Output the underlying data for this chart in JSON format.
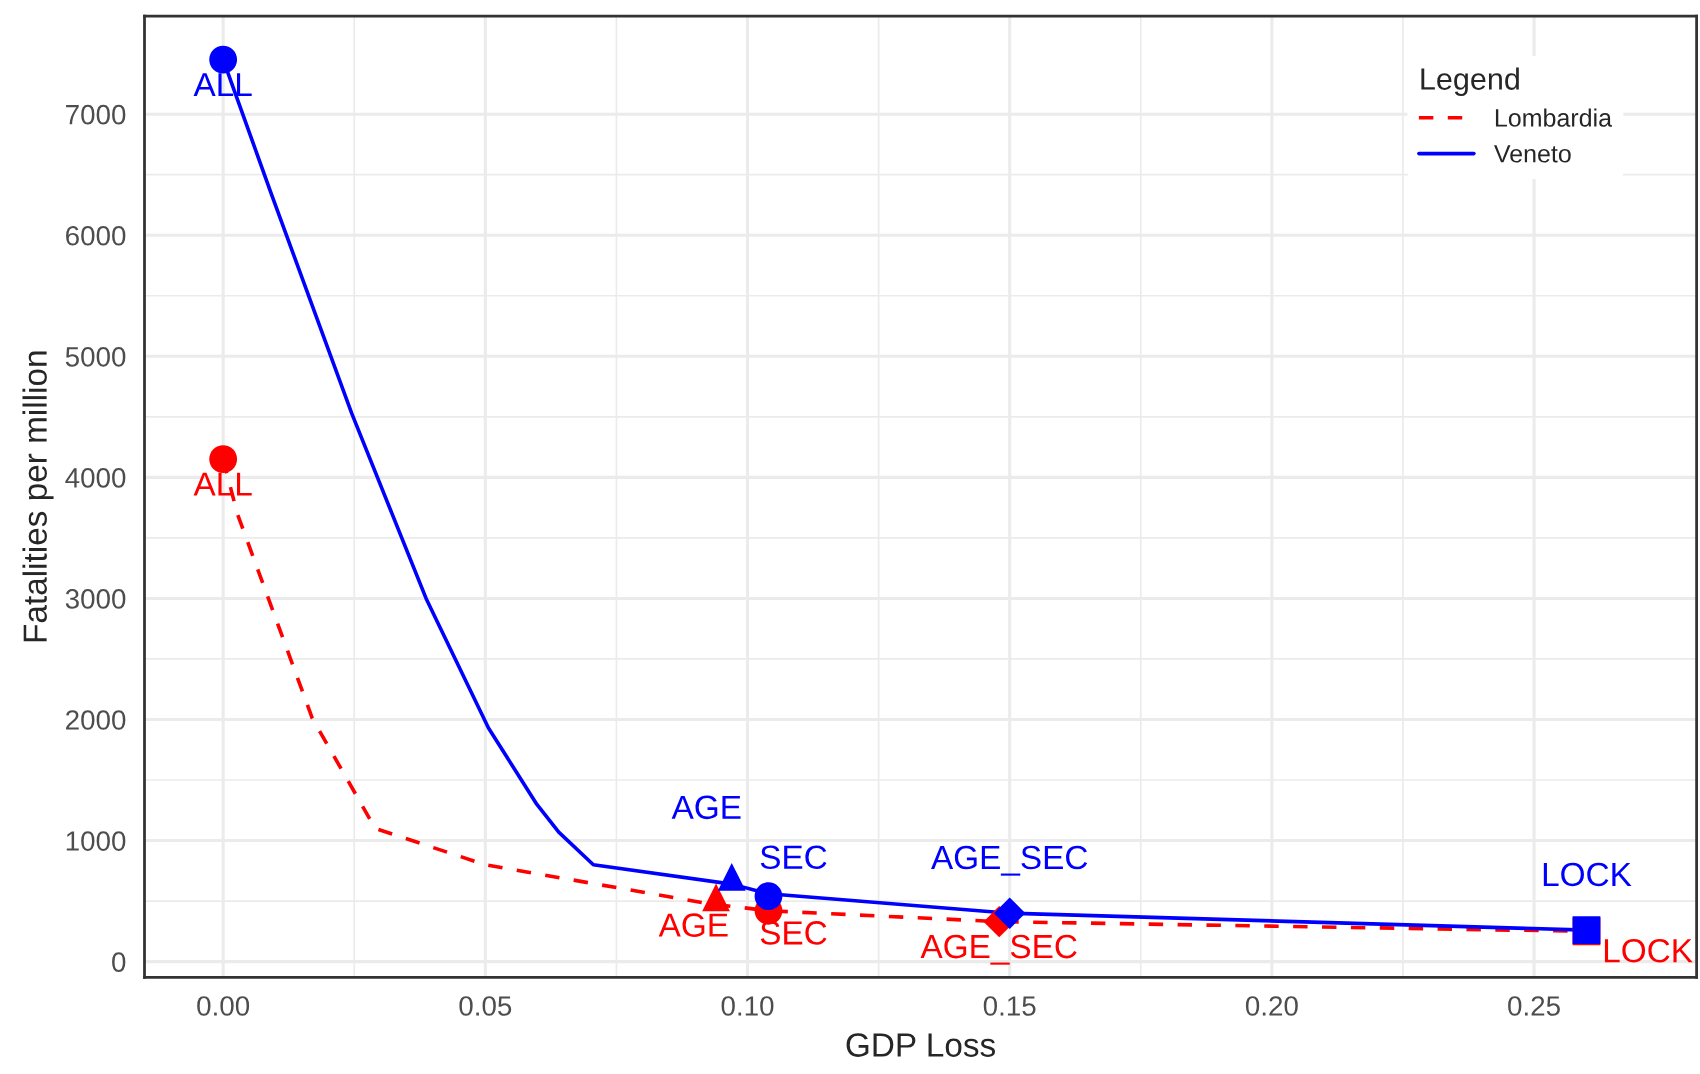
{
  "chart_data": {
    "type": "line",
    "xlabel": "GDP Loss",
    "ylabel": "Fatalities per million",
    "legend_title": "Legend",
    "legend": "top right",
    "grid": true,
    "xlim": [
      -0.015,
      0.281
    ],
    "ylim": [
      -130,
      7810
    ],
    "xticks": [
      {
        "value": 0,
        "label": "0.00"
      },
      {
        "value": 0.05,
        "label": "0.05"
      },
      {
        "value": 0.1,
        "label": "0.10"
      },
      {
        "value": 0.15,
        "label": "0.15"
      },
      {
        "value": 0.2,
        "label": "0.20"
      },
      {
        "value": 0.25,
        "label": "0.25"
      }
    ],
    "yticks": [
      0,
      1000,
      2000,
      3000,
      4000,
      5000,
      6000,
      7000
    ],
    "series": [
      {
        "name": "Lombardia",
        "color": "#ff0000",
        "line_style": "dashed",
        "marker": "none",
        "x": [
          0,
          0.0027,
          0.017,
          0.029,
          0.05,
          0.0924,
          0.104,
          0.148,
          0.26
        ],
        "values": [
          4150,
          3700,
          2010,
          1100,
          800,
          480,
          420,
          330,
          250
        ]
      },
      {
        "name": "Veneto",
        "color": "#0000ff",
        "line_style": "solid",
        "marker": "none",
        "x": [
          0,
          0.0092,
          0.0245,
          0.0387,
          0.0506,
          0.0598,
          0.064,
          0.0706,
          0.097,
          0.104,
          0.15,
          0.26
        ],
        "values": [
          7450,
          6340,
          4530,
          3000,
          1930,
          1300,
          1070,
          800,
          640,
          560,
          400,
          260
        ]
      },
      {
        "type": "scatter",
        "color": "#ff0000",
        "marker": "circle",
        "x": [
          0
        ],
        "values": [
          4150
        ],
        "value_labels": [
          "ALL"
        ]
      },
      {
        "type": "scatter",
        "color": "#ff0000",
        "marker": "triangle",
        "x": [
          0.094
        ],
        "values": [
          530
        ],
        "value_labels": [
          "AGE"
        ]
      },
      {
        "type": "scatter",
        "color": "#ff0000",
        "marker": "circle",
        "x": [
          0.104
        ],
        "values": [
          420
        ],
        "value_labels": [
          "SEC"
        ]
      },
      {
        "type": "scatter",
        "color": "#ff0000",
        "marker": "diamond",
        "x": [
          0.148
        ],
        "values": [
          330
        ],
        "value_labels": [
          "AGE_SEC"
        ]
      },
      {
        "type": "scatter",
        "color": "#ff0000",
        "marker": "square",
        "x": [
          0.26
        ],
        "values": [
          250
        ],
        "value_labels": [
          "LOCK"
        ]
      },
      {
        "type": "scatter",
        "color": "#0000ff",
        "marker": "circle",
        "x": [
          0
        ],
        "values": [
          7450
        ],
        "value_labels": [
          "ALL"
        ]
      },
      {
        "type": "scatter",
        "color": "#0000ff",
        "marker": "triangle",
        "x": [
          0.097
        ],
        "values": [
          700
        ],
        "value_labels": [
          "AGE"
        ]
      },
      {
        "type": "scatter",
        "color": "#0000ff",
        "marker": "circle",
        "x": [
          0.104
        ],
        "values": [
          540
        ],
        "value_labels": [
          "SEC"
        ]
      },
      {
        "type": "scatter",
        "color": "#0000ff",
        "marker": "diamond",
        "x": [
          0.15
        ],
        "values": [
          400
        ],
        "value_labels": [
          "AGE_SEC"
        ]
      },
      {
        "type": "scatter",
        "color": "#0000ff",
        "marker": "square",
        "x": [
          0.26
        ],
        "values": [
          260
        ],
        "value_labels": [
          "LOCK"
        ]
      }
    ]
  }
}
